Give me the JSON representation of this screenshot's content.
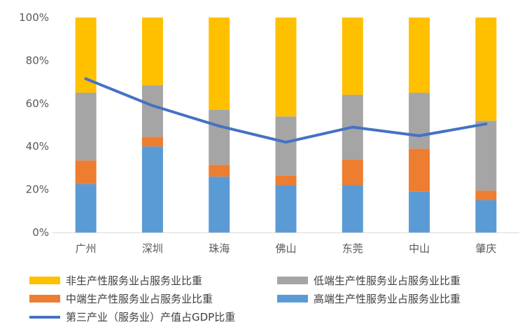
{
  "chart_data": {
    "type": "bar",
    "stacked": true,
    "categories": [
      "广州",
      "深圳",
      "珠海",
      "佛山",
      "东莞",
      "中山",
      "肇庆"
    ],
    "ylim": [
      0,
      100
    ],
    "yticks": [
      "0%",
      "20%",
      "40%",
      "60%",
      "80%",
      "100%"
    ],
    "ytick_values": [
      0,
      20,
      40,
      60,
      80,
      100
    ],
    "grid": false,
    "legend_position": "bottom",
    "series": [
      {
        "name": "高端生产性服务业占服务业比重",
        "type": "bar",
        "color": "#5B9BD5",
        "values": [
          22.5,
          40,
          26,
          22,
          22,
          19,
          15
        ]
      },
      {
        "name": "中端生产性服务业占服务业比重",
        "type": "bar",
        "color": "#ED7D31",
        "values": [
          11,
          4.5,
          5.5,
          4.5,
          12,
          20,
          4.5
        ]
      },
      {
        "name": "低端生产性服务业占服务业比重",
        "type": "bar",
        "color": "#A5A5A5",
        "values": [
          31.5,
          24,
          25.5,
          27.5,
          30,
          26,
          32.5
        ]
      },
      {
        "name": "非生产性服务业占服务业比重",
        "type": "bar",
        "color": "#FFC000",
        "values": [
          35,
          31.5,
          43,
          46,
          36,
          35,
          48
        ]
      },
      {
        "name": "第三产业（服务业）产值占GDP比重",
        "type": "line",
        "color": "#4472C4",
        "values": [
          71.5,
          59,
          49.5,
          42,
          49,
          45,
          50.5
        ]
      }
    ]
  }
}
